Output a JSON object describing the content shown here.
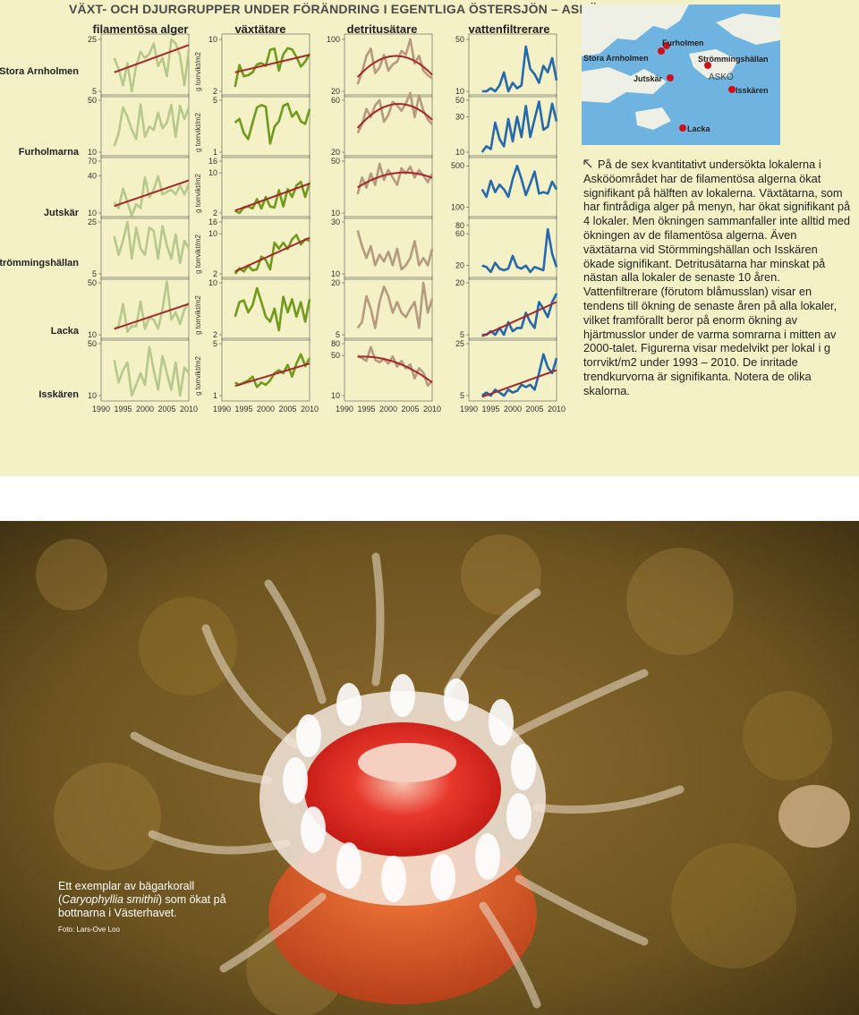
{
  "title": "VÄXT- OCH DJURGRUPPER UNDER FÖRÄNDRING I EGENTLIGA ÖSTERSJÖN – ASKÖ",
  "columns": [
    "filamentösa alger",
    "växtätare",
    "detritusätare",
    "vattenfiltrerare"
  ],
  "rows": [
    "Stora Arnholmen",
    "Furholmarna",
    "Jutskär",
    "Strömmingshällan",
    "Lacka",
    "Isskären"
  ],
  "unit_label": "g torrvikt/m2",
  "colors": {
    "filamentous": "#b7c98a",
    "grazers": "#6f9a1c",
    "detritus": "#b59a80",
    "filter": "#2468ad",
    "trend": "#a8262b",
    "panel_bg": "#f4f1c6",
    "sea": "#6fb4e0",
    "land": "#eef0e6"
  },
  "chart_data": {
    "type": "line",
    "x_ticks": [
      "1990",
      "1995",
      "2000",
      "2005",
      "2010"
    ],
    "x_range": [
      1990,
      2010
    ],
    "ylabel": "g torrvikt/m2",
    "years": [
      1993,
      1994,
      1995,
      1996,
      1997,
      1998,
      1999,
      2000,
      2001,
      2002,
      2003,
      2004,
      2005,
      2006,
      2007,
      2008,
      2009,
      2010
    ],
    "panels": [
      {
        "row": "Stora Arnholmen",
        "col": "filamentösa alger",
        "y_ticks": [
          "25",
          "5"
        ],
        "ylim": [
          5,
          25
        ],
        "log": true,
        "values": [
          14,
          10,
          6,
          12,
          5,
          11,
          17,
          14,
          16,
          22,
          11,
          14,
          8,
          25,
          22,
          15,
          6,
          18
        ],
        "trend": {
          "from": 9,
          "to": 21
        }
      },
      {
        "row": "Stora Arnholmen",
        "col": "växtätare",
        "y_ticks": [
          "10",
          "2"
        ],
        "ylim": [
          2,
          10
        ],
        "log": true,
        "values": [
          2.3,
          4.5,
          3.2,
          3.3,
          3.6,
          4.6,
          4.8,
          4.4,
          7.2,
          7.5,
          3.8,
          6.3,
          7.6,
          7.3,
          5.8,
          4.3,
          5.0,
          6.4
        ],
        "trend": {
          "from": 3.6,
          "to": 6.2
        }
      },
      {
        "row": "Stora Arnholmen",
        "col": "detritusätare",
        "y_ticks": [
          "100",
          "20"
        ],
        "ylim": [
          20,
          100
        ],
        "log": true,
        "values": [
          25,
          36,
          60,
          75,
          35,
          42,
          62,
          38,
          46,
          50,
          70,
          62,
          100,
          47,
          60,
          38,
          33,
          30
        ],
        "trend": "curved"
      },
      {
        "row": "Stora Arnholmen",
        "col": "vattenfiltrerare",
        "y_ticks": [
          "50",
          "10"
        ],
        "ylim": [
          10,
          50
        ],
        "log": true,
        "values": [
          10,
          10,
          11,
          10,
          12,
          18,
          10,
          13,
          11,
          12,
          40,
          20,
          17,
          13,
          22,
          18,
          28,
          14
        ]
      },
      {
        "row": "Furholmarna",
        "col": "filamentösa alger",
        "y_ticks": [
          "50",
          "10"
        ],
        "ylim": [
          10,
          50
        ],
        "log": true,
        "values": [
          12,
          18,
          40,
          30,
          20,
          15,
          44,
          16,
          22,
          20,
          34,
          21,
          25,
          43,
          16,
          42,
          28,
          40
        ]
      },
      {
        "row": "Furholmarna",
        "col": "växtätare",
        "y_ticks": [
          "5",
          "1"
        ],
        "ylim": [
          1,
          5
        ],
        "log": true,
        "values": [
          2.5,
          2.8,
          1.8,
          1.5,
          2.5,
          4.0,
          4.3,
          4.1,
          1.3,
          2.2,
          2.6,
          4.2,
          4.5,
          3.0,
          3.5,
          2.6,
          2.4,
          3.8
        ]
      },
      {
        "row": "Furholmarna",
        "col": "detritusätare",
        "y_ticks": [
          "60",
          "20"
        ],
        "ylim": [
          20,
          60
        ],
        "log": true,
        "values": [
          30,
          36,
          50,
          42,
          54,
          60,
          38,
          44,
          58,
          54,
          48,
          56,
          70,
          42,
          66,
          48,
          40,
          36
        ],
        "trend": "curved"
      },
      {
        "row": "Furholmarna",
        "col": "vattenfiltrerare",
        "y_ticks": [
          "50",
          "30",
          "10"
        ],
        "ylim": [
          10,
          50
        ],
        "log": true,
        "values": [
          10,
          12,
          11,
          25,
          15,
          12,
          28,
          14,
          30,
          16,
          42,
          16,
          28,
          48,
          20,
          22,
          45,
          26
        ]
      },
      {
        "row": "Jutskär",
        "col": "filamentösa alger",
        "y_ticks": [
          "70",
          "40",
          "10"
        ],
        "ylim": [
          10,
          70
        ],
        "log": true,
        "values": [
          15,
          12,
          25,
          15,
          8,
          14,
          12,
          38,
          18,
          24,
          40,
          20,
          22,
          24,
          20,
          28,
          20,
          30
        ],
        "trend": {
          "from": 13,
          "to": 34
        }
      },
      {
        "row": "Jutskär",
        "col": "växtätare",
        "y_ticks": [
          "16",
          "10",
          "2"
        ],
        "ylim": [
          2,
          16
        ],
        "log": true,
        "values": [
          2.2,
          2.0,
          2.5,
          2.6,
          2.4,
          3.5,
          2.4,
          3.8,
          2.6,
          2.5,
          5.0,
          2.6,
          5.2,
          3.8,
          6.0,
          7.0,
          3.8,
          6.8
        ],
        "trend": {
          "from": 2.2,
          "to": 6.5
        }
      },
      {
        "row": "Jutskär",
        "col": "detritusätare",
        "y_ticks": [
          "50",
          "10"
        ],
        "ylim": [
          10,
          50
        ],
        "log": true,
        "values": [
          18,
          30,
          22,
          34,
          24,
          46,
          28,
          38,
          30,
          24,
          40,
          34,
          42,
          30,
          38,
          32,
          26,
          34
        ],
        "trend": "curved"
      },
      {
        "row": "Jutskär",
        "col": "vattenfiltrerare",
        "y_ticks": [
          "500",
          "100"
        ],
        "ylim": [
          80,
          600
        ],
        "log": true,
        "values": [
          200,
          150,
          280,
          180,
          240,
          200,
          150,
          300,
          500,
          300,
          160,
          250,
          400,
          170,
          180,
          170,
          270,
          200
        ]
      },
      {
        "row": "Strömmingshällan",
        "col": "filamentösa alger",
        "y_ticks": [
          "25",
          "5"
        ],
        "ylim": [
          5,
          25
        ],
        "log": true,
        "values": [
          16,
          9,
          14,
          25,
          8,
          21,
          11,
          9,
          21,
          19,
          8,
          22,
          12,
          8,
          17,
          7,
          14,
          11
        ]
      },
      {
        "row": "Strömmingshällan",
        "col": "växtätare",
        "y_ticks": [
          "16",
          "10",
          "2"
        ],
        "ylim": [
          2,
          16
        ],
        "log": true,
        "values": [
          2.0,
          2.5,
          2.2,
          2.8,
          2.3,
          2.4,
          4.0,
          3.5,
          2.4,
          7.0,
          5.5,
          7.0,
          5.4,
          8.0,
          9.5,
          6.5,
          8.0,
          7.5
        ],
        "trend": {
          "from": 2.2,
          "to": 8.5
        }
      },
      {
        "row": "Strömmingshällan",
        "col": "detritusätare",
        "y_ticks": [
          "30",
          "10"
        ],
        "ylim": [
          10,
          30
        ],
        "log": true,
        "values": [
          25,
          18,
          14,
          18,
          12,
          15,
          13,
          16,
          12,
          17,
          11,
          12,
          14,
          20,
          12,
          14,
          12,
          17
        ]
      },
      {
        "row": "Strömmingshällan",
        "col": "vattenfiltrerare",
        "y_ticks": [
          "80",
          "60",
          "20"
        ],
        "ylim": [
          15,
          90
        ],
        "log": true,
        "values": [
          20,
          19,
          16,
          22,
          18,
          17,
          18,
          28,
          19,
          18,
          20,
          16,
          19,
          18,
          17,
          70,
          30,
          19
        ]
      },
      {
        "row": "Lacka",
        "col": "filamentösa alger",
        "y_ticks": [
          "50",
          "10"
        ],
        "ylim": [
          10,
          50
        ],
        "log": true,
        "values": [
          12,
          13,
          26,
          11,
          13,
          13,
          28,
          12,
          17,
          16,
          12,
          22,
          52,
          16,
          20,
          14,
          22,
          27
        ],
        "trend": {
          "from": 12,
          "to": 26
        }
      },
      {
        "row": "Lacka",
        "col": "växtätare",
        "y_ticks": [
          "10",
          "2"
        ],
        "ylim": [
          2,
          10
        ],
        "log": true,
        "values": [
          3.5,
          5.5,
          5.8,
          4.0,
          5.0,
          8.5,
          5.5,
          3.5,
          3.0,
          4.5,
          2.3,
          6.5,
          4.0,
          6.0,
          3.5,
          5.5,
          3.0,
          6.0
        ]
      },
      {
        "row": "Lacka",
        "col": "detritusätare",
        "y_ticks": [
          "20",
          "5"
        ],
        "ylim": [
          5,
          20
        ],
        "log": true,
        "values": [
          6,
          7,
          14,
          10,
          6,
          12,
          18,
          14,
          9,
          12,
          9,
          8,
          10,
          12,
          6,
          20,
          9,
          13
        ]
      },
      {
        "row": "Lacka",
        "col": "vattenfiltrerare",
        "y_ticks": [
          "20",
          "5"
        ],
        "ylim": [
          5,
          20
        ],
        "log": true,
        "values": [
          5,
          5,
          5.5,
          5,
          6,
          5,
          7,
          5.5,
          6,
          6,
          9,
          7,
          6,
          12,
          10,
          8,
          12,
          15
        ],
        "trend": {
          "from": 4.8,
          "to": 12
        }
      },
      {
        "row": "Isskären",
        "col": "filamentösa alger",
        "y_ticks": [
          "50",
          "10"
        ],
        "ylim": [
          10,
          50
        ],
        "log": true,
        "values": [
          30,
          15,
          22,
          28,
          10,
          14,
          20,
          14,
          45,
          22,
          12,
          34,
          20,
          12,
          28,
          10,
          24,
          20
        ]
      },
      {
        "row": "Isskären",
        "col": "växtätare",
        "y_ticks": [
          "5",
          "1"
        ],
        "ylim": [
          1,
          5
        ],
        "log": true,
        "values": [
          1.5,
          1.4,
          1.5,
          1.6,
          1.8,
          1.3,
          1.5,
          1.4,
          1.6,
          2.0,
          2.2,
          2.0,
          2.6,
          1.8,
          2.7,
          3.6,
          2.5,
          3.2
        ],
        "trend": {
          "from": 1.35,
          "to": 2.7
        }
      },
      {
        "row": "Isskären",
        "col": "detritusätare",
        "y_ticks": [
          "80",
          "50",
          "10"
        ],
        "ylim": [
          10,
          80
        ],
        "log": true,
        "values": [
          50,
          45,
          40,
          70,
          42,
          38,
          44,
          36,
          48,
          32,
          40,
          30,
          35,
          20,
          30,
          25,
          15,
          18
        ],
        "trend": "curved"
      },
      {
        "row": "Isskären",
        "col": "vattenfiltrerare",
        "y_ticks": [
          "25",
          "5"
        ],
        "ylim": [
          5,
          25
        ],
        "log": true,
        "values": [
          5,
          5.5,
          5,
          6,
          5.5,
          5,
          6,
          5.5,
          5.8,
          7,
          6.5,
          7,
          6,
          10,
          18,
          12,
          10,
          16
        ],
        "trend": {
          "from": 4.8,
          "to": 11
        }
      }
    ]
  },
  "map": {
    "places": [
      "Stora Arnholmen",
      "Furholmen",
      "Strömmingshällan",
      "Jutskär",
      "ASKÖ",
      "Isskären",
      "Lacka"
    ]
  },
  "info": {
    "paragraph": "På de sex kvantitativt undersökta lokalerna i Askööområdet har de filamentösa algerna ökat signifikant på hälften av lokalerna. Växtätarna, som har fintrådiga alger på menyn, har ökat signifikant på 4 lokaler. Men ökningen sammanfaller inte alltid med ökningen av de filamentösa algerna. Även växtätarna vid Störmmingshällan och Isskären ökade signifikant. Detritusätarna har minskat på nästan alla lokaler de senaste 10 åren. Vattenfiltrerare (förutom blåmusslan) visar en tendens till ökning de senaste åren på alla lokaler, vilket framförallt beror på enorm ökning av hjärtmusslor under de varma somrarna i mitten av 2000-talet. Figurerna visar medelvikt per lokal i g torrvikt/m2 under 1993 – 2010. De inritade trendkurvorna är signifikanta. Notera de olika skalorna."
  },
  "photo": {
    "caption_line1": "Ett exemplar av bägarkorall",
    "caption_species": "Caryophyllia smithii",
    "caption_line2": "som ökat på bottnarna i Västerhavet.",
    "credit": "Foto: Lars-Ove Loo"
  }
}
